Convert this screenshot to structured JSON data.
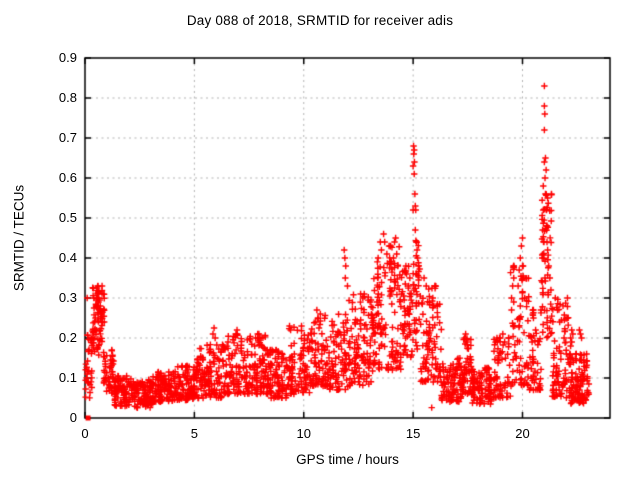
{
  "window": {
    "background": "#ffffff",
    "axis_color": "#000000"
  },
  "chart_data": {
    "type": "scatter",
    "title": "Day 088 of 2018, SRMTID for receiver adis",
    "xlabel": "GPS time / hours",
    "ylabel": "SRMTID / TECUs",
    "xlim": [
      0,
      24
    ],
    "ylim": [
      0,
      0.9
    ],
    "xticks": {
      "values": [
        0,
        5,
        10,
        15,
        20
      ],
      "labels": [
        "0",
        "5",
        "10",
        "15",
        "20"
      ]
    },
    "yticks": {
      "values": [
        0,
        0.1,
        0.2,
        0.3,
        0.4,
        0.5,
        0.6,
        0.7,
        0.8,
        0.9
      ],
      "labels": [
        "0",
        "0.1",
        "0.2",
        "0.3",
        "0.4",
        "0.5",
        "0.6",
        "0.7",
        "0.8",
        "0.9"
      ]
    },
    "grid": {
      "show": true,
      "style": "dashed",
      "color": "#b3b3b3"
    },
    "legend": "none",
    "series": [
      {
        "name": "SRMTID",
        "marker": "plus",
        "color": "#ff0000",
        "origin_point": [
          0.14,
          0.0
        ],
        "notable_points": [
          [
            0.1,
            0.3
          ],
          [
            0.12,
            0.207
          ],
          [
            0.45,
            0.22
          ],
          [
            0.48,
            0.25
          ],
          [
            0.5,
            0.28
          ],
          [
            0.52,
            0.3
          ],
          [
            0.55,
            0.325
          ],
          [
            0.55,
            0.295
          ],
          [
            0.57,
            0.31
          ],
          [
            0.58,
            0.28
          ],
          [
            0.6,
            0.315
          ],
          [
            0.6,
            0.26
          ],
          [
            0.62,
            0.29
          ],
          [
            0.63,
            0.3
          ],
          [
            0.65,
            0.27
          ],
          [
            0.67,
            0.295
          ],
          [
            0.7,
            0.28
          ],
          [
            0.72,
            0.25
          ],
          [
            0.75,
            0.26
          ],
          [
            0.78,
            0.24
          ],
          [
            5.85,
            0.21
          ],
          [
            5.9,
            0.225
          ],
          [
            5.95,
            0.2
          ],
          [
            6.9,
            0.21
          ],
          [
            6.95,
            0.22
          ],
          [
            7.8,
            0.2
          ],
          [
            7.95,
            0.21
          ],
          [
            8.05,
            0.2
          ],
          [
            9.35,
            0.23
          ],
          [
            9.4,
            0.22
          ],
          [
            10.55,
            0.24
          ],
          [
            10.6,
            0.27
          ],
          [
            10.65,
            0.25
          ],
          [
            11.85,
            0.42
          ],
          [
            11.88,
            0.4
          ],
          [
            11.92,
            0.38
          ],
          [
            11.9,
            0.35
          ],
          [
            12.0,
            0.33
          ],
          [
            12.6,
            0.31
          ],
          [
            12.7,
            0.3
          ],
          [
            13.4,
            0.4
          ],
          [
            13.5,
            0.44
          ],
          [
            13.55,
            0.42
          ],
          [
            13.65,
            0.46
          ],
          [
            13.7,
            0.44
          ],
          [
            13.8,
            0.41
          ],
          [
            13.9,
            0.43
          ],
          [
            14.0,
            0.39
          ],
          [
            14.1,
            0.4
          ],
          [
            14.15,
            0.44
          ],
          [
            14.2,
            0.45
          ],
          [
            14.25,
            0.41
          ],
          [
            14.3,
            0.38
          ],
          [
            14.7,
            0.36
          ],
          [
            14.85,
            0.35
          ],
          [
            15.0,
            0.52
          ],
          [
            15.0,
            0.63
          ],
          [
            15.02,
            0.68
          ],
          [
            15.03,
            0.66
          ],
          [
            15.05,
            0.67
          ],
          [
            15.05,
            0.61
          ],
          [
            15.06,
            0.64
          ],
          [
            15.08,
            0.56
          ],
          [
            15.1,
            0.53
          ],
          [
            15.1,
            0.47
          ],
          [
            15.12,
            0.52
          ],
          [
            15.15,
            0.44
          ],
          [
            15.18,
            0.42
          ],
          [
            15.2,
            0.4
          ],
          [
            15.25,
            0.38
          ],
          [
            15.5,
            0.35
          ],
          [
            15.6,
            0.33
          ],
          [
            15.85,
            0.026
          ],
          [
            15.9,
            0.3
          ],
          [
            16.0,
            0.33
          ],
          [
            16.1,
            0.28
          ],
          [
            17.35,
            0.2
          ],
          [
            17.4,
            0.21
          ],
          [
            17.45,
            0.19
          ],
          [
            18.85,
            0.19
          ],
          [
            18.95,
            0.2
          ],
          [
            19.1,
            0.21
          ],
          [
            19.5,
            0.3
          ],
          [
            19.5,
            0.27
          ],
          [
            19.55,
            0.33
          ],
          [
            19.6,
            0.35
          ],
          [
            19.6,
            0.29
          ],
          [
            19.8,
            0.33
          ],
          [
            19.85,
            0.37
          ],
          [
            19.85,
            0.25
          ],
          [
            19.9,
            0.4
          ],
          [
            19.9,
            0.28
          ],
          [
            19.95,
            0.43
          ],
          [
            20.0,
            0.45
          ],
          [
            20.0,
            0.38
          ],
          [
            20.05,
            0.35
          ],
          [
            20.1,
            0.3
          ],
          [
            20.5,
            0.25
          ],
          [
            20.6,
            0.22
          ],
          [
            20.9,
            0.4
          ],
          [
            20.9,
            0.34
          ],
          [
            20.92,
            0.47
          ],
          [
            20.95,
            0.52
          ],
          [
            20.95,
            0.58
          ],
          [
            20.98,
            0.44
          ],
          [
            21.0,
            0.83
          ],
          [
            21.0,
            0.78
          ],
          [
            21.0,
            0.72
          ],
          [
            21.0,
            0.64
          ],
          [
            21.02,
            0.76
          ],
          [
            21.03,
            0.6
          ],
          [
            21.05,
            0.65
          ],
          [
            21.05,
            0.56
          ],
          [
            21.08,
            0.62
          ],
          [
            21.1,
            0.52
          ],
          [
            21.1,
            0.48
          ],
          [
            21.12,
            0.44
          ],
          [
            21.15,
            0.55
          ],
          [
            21.15,
            0.42
          ],
          [
            21.2,
            0.38
          ],
          [
            21.25,
            0.35
          ],
          [
            21.3,
            0.32
          ],
          [
            21.5,
            0.3
          ],
          [
            21.6,
            0.27
          ],
          [
            21.7,
            0.24
          ],
          [
            21.9,
            0.2
          ],
          [
            22.2,
            0.18
          ],
          [
            22.2,
            0.2
          ],
          [
            22.25,
            0.22
          ],
          [
            22.3,
            0.21
          ],
          [
            22.25,
            0.19
          ],
          [
            22.6,
            0.22
          ],
          [
            22.65,
            0.21
          ],
          [
            22.7,
            0.2
          ]
        ],
        "density_bands": {
          "comment": "dense scatter cloud approximated per time bin: [x_start, x_end, n_points, y_min, y_max, skew_toward_min]",
          "seed": 20180088,
          "bands": [
            [
              0.02,
              0.32,
              26,
              0.05,
              0.21,
              1.4
            ],
            [
              0.32,
              0.88,
              55,
              0.15,
              0.33,
              0.8
            ],
            [
              0.85,
              1.35,
              40,
              0.06,
              0.17,
              1.3
            ],
            [
              1.35,
              2.1,
              65,
              0.03,
              0.105,
              1.2
            ],
            [
              2.1,
              3.1,
              85,
              0.025,
              0.095,
              1.3
            ],
            [
              3.1,
              4.1,
              85,
              0.04,
              0.115,
              1.3
            ],
            [
              4.1,
              5.1,
              85,
              0.045,
              0.13,
              1.3
            ],
            [
              5.1,
              6.3,
              95,
              0.05,
              0.185,
              1.5
            ],
            [
              6.3,
              7.1,
              65,
              0.06,
              0.21,
              1.6
            ],
            [
              7.1,
              8.3,
              95,
              0.06,
              0.21,
              1.6
            ],
            [
              8.3,
              9.3,
              80,
              0.05,
              0.17,
              1.4
            ],
            [
              9.3,
              10.3,
              75,
              0.06,
              0.23,
              1.7
            ],
            [
              10.3,
              11.1,
              60,
              0.08,
              0.26,
              1.7
            ],
            [
              11.1,
              12.05,
              70,
              0.07,
              0.26,
              1.6
            ],
            [
              12.05,
              13.2,
              95,
              0.08,
              0.31,
              1.5
            ],
            [
              13.2,
              14.45,
              95,
              0.12,
              0.43,
              1.4
            ],
            [
              14.45,
              15.0,
              42,
              0.14,
              0.38,
              1.2
            ],
            [
              15.0,
              15.35,
              30,
              0.17,
              0.45,
              1.0
            ],
            [
              15.35,
              16.3,
              72,
              0.09,
              0.33,
              1.6
            ],
            [
              16.3,
              17.2,
              70,
              0.04,
              0.15,
              1.2
            ],
            [
              17.2,
              17.7,
              42,
              0.06,
              0.2,
              1.4
            ],
            [
              17.7,
              18.6,
              70,
              0.035,
              0.125,
              1.2
            ],
            [
              18.6,
              19.45,
              55,
              0.05,
              0.2,
              1.5
            ],
            [
              19.45,
              20.3,
              60,
              0.08,
              0.38,
              1.7
            ],
            [
              20.3,
              20.85,
              40,
              0.07,
              0.27,
              1.6
            ],
            [
              20.85,
              21.35,
              48,
              0.2,
              0.56,
              1.1
            ],
            [
              21.35,
              22.1,
              62,
              0.05,
              0.3,
              1.8
            ],
            [
              22.1,
              23.0,
              85,
              0.035,
              0.16,
              1.4
            ],
            [
              22.95,
              23.05,
              8,
              0.05,
              0.12,
              1.0
            ]
          ]
        }
      }
    ]
  }
}
